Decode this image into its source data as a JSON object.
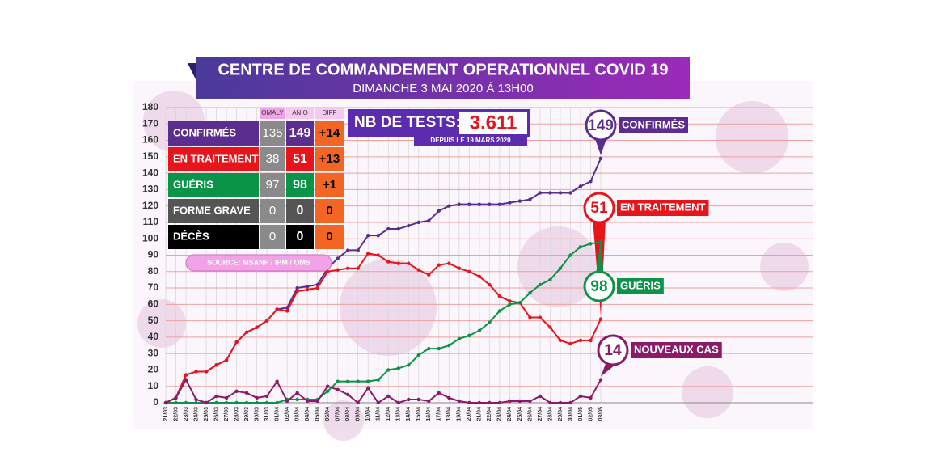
{
  "header": {
    "title": "CENTRE DE COMMANDEMENT OPERATIONNEL COVID 19",
    "subtitle": "DIMANCHE 3 MAI 2020 À 13H00"
  },
  "table": {
    "columns": [
      "OMALY",
      "ANIO",
      "DIFF"
    ],
    "rows": [
      {
        "label": "CONFIRMÉS",
        "omaly": "135",
        "anio": "149",
        "diff": "+14",
        "color": "#5b2d8e"
      },
      {
        "label": "EN TRAITEMENT",
        "omaly": "38",
        "anio": "51",
        "diff": "+13",
        "color": "#e8141b"
      },
      {
        "label": "GUÉRIS",
        "omaly": "97",
        "anio": "98",
        "diff": "+1",
        "color": "#0a9447"
      },
      {
        "label": "FORME GRAVE",
        "omaly": "0",
        "anio": "0",
        "diff": "0",
        "color": "#555555"
      },
      {
        "label": "DÉCÈS",
        "omaly": "0",
        "anio": "0",
        "diff": "0",
        "color": "#000000"
      }
    ],
    "source": "SOURCE: MSANP / IPM / OMS"
  },
  "tests": {
    "label": "NB DE TESTS:",
    "value": "3.611",
    "since": "DEPUIS LE 19 MARS 2020"
  },
  "chart_data": {
    "type": "line",
    "categories": [
      "21/03",
      "22/03",
      "23/03",
      "24/03",
      "25/03",
      "26/03",
      "27/03",
      "28/03",
      "29/03",
      "30/03",
      "31/03",
      "01/04",
      "02/04",
      "03/04",
      "04/04",
      "05/04",
      "06/04",
      "07/04",
      "08/04",
      "09/04",
      "10/04",
      "11/04",
      "12/04",
      "13/04",
      "14/04",
      "15/04",
      "16/04",
      "17/04",
      "18/04",
      "19/04",
      "20/04",
      "21/04",
      "22/04",
      "23/04",
      "24/04",
      "25/04",
      "26/04",
      "27/04",
      "28/04",
      "29/04",
      "30/04",
      "01/05",
      "02/05",
      "03/05"
    ],
    "series": [
      {
        "name": "CONFIRMÉS",
        "color": "#5b2d8e",
        "values": [
          0,
          3,
          17,
          19,
          19,
          23,
          26,
          37,
          43,
          46,
          50,
          57,
          58,
          70,
          71,
          72,
          82,
          88,
          93,
          93,
          102,
          102,
          106,
          106,
          108,
          110,
          111,
          117,
          120,
          121,
          121,
          121,
          121,
          121,
          122,
          123,
          124,
          128,
          128,
          128,
          128,
          132,
          135,
          149
        ]
      },
      {
        "name": "EN TRAITEMENT",
        "color": "#e8141b",
        "values": [
          0,
          3,
          17,
          19,
          19,
          23,
          26,
          37,
          43,
          46,
          50,
          57,
          56,
          68,
          69,
          70,
          80,
          81,
          82,
          82,
          91,
          90,
          86,
          85,
          85,
          81,
          78,
          84,
          85,
          82,
          80,
          77,
          72,
          65,
          62,
          61,
          52,
          52,
          46,
          38,
          36,
          38,
          38,
          51
        ]
      },
      {
        "name": "GUÉRIS",
        "color": "#0a9447",
        "values": [
          0,
          0,
          0,
          0,
          0,
          0,
          0,
          0,
          0,
          0,
          0,
          0,
          2,
          2,
          2,
          2,
          7,
          13,
          13,
          13,
          13,
          14,
          20,
          21,
          23,
          29,
          33,
          33,
          35,
          39,
          41,
          44,
          49,
          56,
          60,
          61,
          67,
          72,
          75,
          82,
          90,
          95,
          97,
          98
        ]
      },
      {
        "name": "NOUVEAUX CAS",
        "color": "#8b1a6b",
        "values": [
          0,
          3,
          14,
          2,
          0,
          4,
          3,
          7,
          6,
          3,
          4,
          13,
          1,
          6,
          1,
          1,
          10,
          8,
          5,
          0,
          9,
          0,
          4,
          0,
          2,
          2,
          1,
          6,
          3,
          1,
          0,
          0,
          0,
          0,
          1,
          1,
          1,
          4,
          0,
          0,
          0,
          4,
          3,
          14
        ]
      }
    ],
    "ylim": [
      0,
      180
    ],
    "yticks": [
      0,
      10,
      20,
      30,
      40,
      50,
      60,
      70,
      80,
      90,
      100,
      110,
      120,
      130,
      140,
      150,
      160,
      170,
      180
    ],
    "grid": true
  }
}
